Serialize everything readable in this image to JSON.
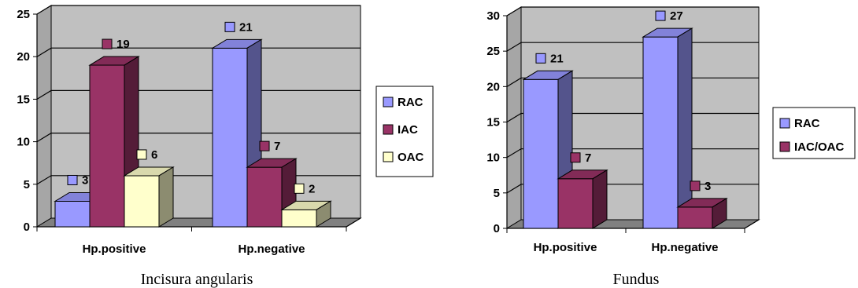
{
  "colors": {
    "RAC": "#9999ff",
    "IAC": "#993366",
    "OAC": "#ffffcc",
    "IAC/OAC": "#993366",
    "wall": "#c0c0c0",
    "floor": "#808080"
  },
  "chart_data": [
    {
      "type": "bar",
      "title": "Incisura angularis",
      "categories": [
        "Hp.positive",
        "Hp.negative"
      ],
      "series": [
        {
          "name": "RAC",
          "values": [
            3,
            21
          ]
        },
        {
          "name": "IAC",
          "values": [
            19,
            7
          ]
        },
        {
          "name": "OAC",
          "values": [
            6,
            2
          ]
        }
      ],
      "ylim": [
        0,
        25
      ],
      "yticks": [
        "0",
        "5",
        "10",
        "15",
        "20",
        "25"
      ],
      "grid": true,
      "legend": "right"
    },
    {
      "type": "bar",
      "title": "Fundus",
      "categories": [
        "Hp.positive",
        "Hp.negative"
      ],
      "series": [
        {
          "name": "RAC",
          "values": [
            21,
            27
          ]
        },
        {
          "name": "IAC/OAC",
          "values": [
            7,
            3
          ]
        }
      ],
      "ylim": [
        0,
        30
      ],
      "yticks": [
        "0",
        "5",
        "10",
        "15",
        "20",
        "25",
        "30"
      ],
      "grid": true,
      "legend": "right"
    }
  ]
}
